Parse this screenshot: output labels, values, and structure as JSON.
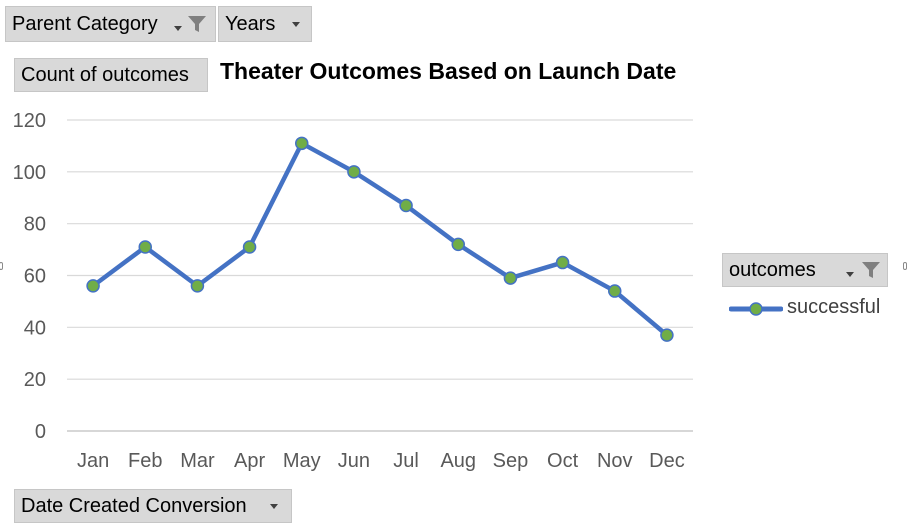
{
  "filters": {
    "parent_category_label": "Parent Category",
    "years_label": "Years",
    "values_label": "Count of outcomes",
    "axis_field_label": "Date Created Conversion",
    "legend_field_label": "outcomes"
  },
  "icons": {
    "filter": "funnel-icon",
    "dropdown": "caret-down-icon"
  },
  "colors": {
    "line": "#4472c4",
    "marker": "#70ad47",
    "grid": "#d9d9d9",
    "button_bg": "#d9d9d9"
  },
  "chart_data": {
    "type": "line",
    "title": "Theater Outcomes Based on Launch Date",
    "categories": [
      "Jan",
      "Feb",
      "Mar",
      "Apr",
      "May",
      "Jun",
      "Jul",
      "Aug",
      "Sep",
      "Oct",
      "Nov",
      "Dec"
    ],
    "series": [
      {
        "name": "successful",
        "values": [
          56,
          71,
          56,
          71,
          111,
          100,
          87,
          72,
          59,
          65,
          54,
          37
        ]
      }
    ],
    "ylim": [
      0,
      120
    ],
    "yticks": [
      0,
      20,
      40,
      60,
      80,
      100,
      120
    ],
    "grid": true,
    "legend": "right",
    "markers": true
  }
}
